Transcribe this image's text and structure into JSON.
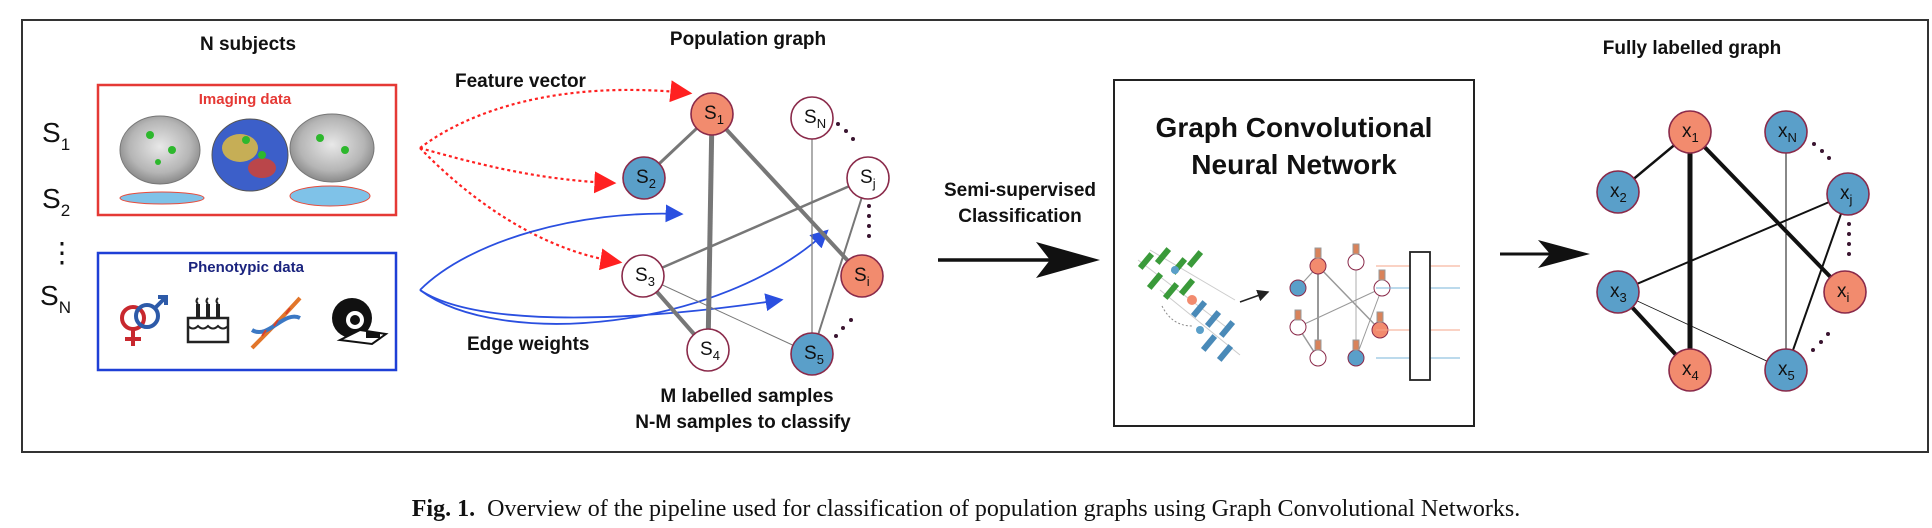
{
  "headings": {
    "subjects": "N subjects",
    "population": "Population graph",
    "fully_labelled": "Fully labelled graph"
  },
  "subjects": {
    "s1": "S",
    "s1_sub": "1",
    "s2": "S",
    "s2_sub": "2",
    "dots": "⋮",
    "sn": "S",
    "sn_sub": "N"
  },
  "inputs": {
    "imaging_title": "Imaging data",
    "phenotypic_title": "Phenotypic data"
  },
  "arrows": {
    "feature_vector": "Feature vector",
    "edge_weights": "Edge weights",
    "semi_line1": "Semi-supervised",
    "semi_line2": "Classification"
  },
  "population_nodes": [
    {
      "id": "s1",
      "base": "S",
      "sub": "1"
    },
    {
      "id": "s2",
      "base": "S",
      "sub": "2"
    },
    {
      "id": "s3",
      "base": "S",
      "sub": "3"
    },
    {
      "id": "s4",
      "base": "S",
      "sub": "4"
    },
    {
      "id": "s5",
      "base": "S",
      "sub": "5"
    },
    {
      "id": "sn",
      "base": "S",
      "sub": "N"
    },
    {
      "id": "sj",
      "base": "S",
      "sub": "j"
    },
    {
      "id": "si",
      "base": "S",
      "sub": "i"
    }
  ],
  "population_notes": {
    "line1": "M labelled samples",
    "line2": "N-M samples to classify"
  },
  "gcn": {
    "title_line1": "Graph Convolutional",
    "title_line2": "Neural Network"
  },
  "result_nodes": [
    {
      "id": "x1",
      "base": "x",
      "sub": "1"
    },
    {
      "id": "x2",
      "base": "x",
      "sub": "2"
    },
    {
      "id": "x3",
      "base": "x",
      "sub": "3"
    },
    {
      "id": "x4",
      "base": "x",
      "sub": "4"
    },
    {
      "id": "x5",
      "base": "x",
      "sub": "5"
    },
    {
      "id": "xn",
      "base": "x",
      "sub": "N"
    },
    {
      "id": "xj",
      "base": "x",
      "sub": "j"
    },
    {
      "id": "xi",
      "base": "x",
      "sub": "i"
    }
  ],
  "caption": {
    "label": "Fig. 1.",
    "text": "Overview of the pipeline used for classification of population graphs using Graph Convolutional Networks."
  },
  "colors": {
    "orange": "#f28b6e",
    "blue": "#5a9fc9",
    "red_arrow": "#ff2020",
    "blue_arrow": "#2a4fe0",
    "node_stroke": "#8a2a4a"
  }
}
